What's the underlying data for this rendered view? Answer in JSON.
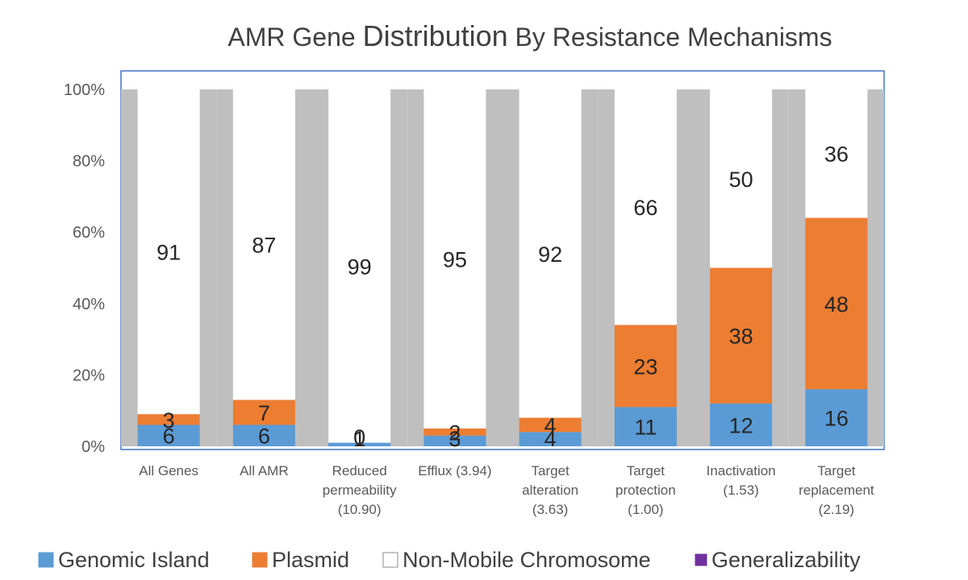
{
  "chart_data": {
    "type": "bar",
    "stacked": true,
    "percent_stacked": true,
    "title": "AMR Gene Distribution By Resistance Mechanisms",
    "title_parts": [
      "AMR Gene ",
      "Distribution",
      " By Resistance Mechanisms"
    ],
    "ylim": [
      0,
      100
    ],
    "yticks": [
      "0%",
      "20%",
      "40%",
      "60%",
      "80%",
      "100%"
    ],
    "categories": [
      [
        "All Genes"
      ],
      [
        "All AMR"
      ],
      [
        "Reduced",
        "permeability",
        "(10.90)"
      ],
      [
        "Efflux (3.94)"
      ],
      [
        "Target",
        "alteration",
        "(3.63)"
      ],
      [
        "Target",
        "protection",
        "(1.00)"
      ],
      [
        "Inactivation",
        "(1.53)"
      ],
      [
        "Target",
        "replacement",
        "(2.19)"
      ]
    ],
    "series": [
      {
        "name": "Genomic Island",
        "color": "#5B9BD5",
        "values": [
          6,
          6,
          1,
          3,
          4,
          11,
          12,
          16
        ],
        "labels": [
          "6",
          "6",
          "1",
          "3",
          "4",
          "11",
          "12",
          "16"
        ]
      },
      {
        "name": "Plasmid",
        "color": "#ED7D31",
        "values": [
          3,
          7,
          0,
          2,
          4,
          23,
          38,
          48
        ],
        "labels": [
          "3",
          "7",
          "0",
          "2",
          "4",
          "23",
          "38",
          "48"
        ]
      },
      {
        "name": "Non-Mobile Chromosome",
        "color": "#FFFFFF",
        "values": [
          91,
          87,
          99,
          95,
          92,
          66,
          50,
          36
        ],
        "labels": [
          "91",
          "87",
          "99",
          "95",
          "92",
          "66",
          "50",
          "36"
        ]
      }
    ],
    "generalizability": {
      "name": "Generalizability",
      "color": "#7030A0",
      "values": [
        100,
        100,
        100,
        100,
        100,
        100,
        100,
        100
      ],
      "fill": "#BFBFBF"
    },
    "legend": {
      "position": "bottom",
      "items": [
        {
          "name": "Genomic Island",
          "color": "#5B9BD5"
        },
        {
          "name": "Plasmid",
          "color": "#ED7D31"
        },
        {
          "name": "Non-Mobile Chromosome",
          "color": "#FFFFFF"
        },
        {
          "name": "Generalizability",
          "color": "#7030A0"
        }
      ]
    },
    "plot_border_color": "#4472C4",
    "grid": false
  }
}
